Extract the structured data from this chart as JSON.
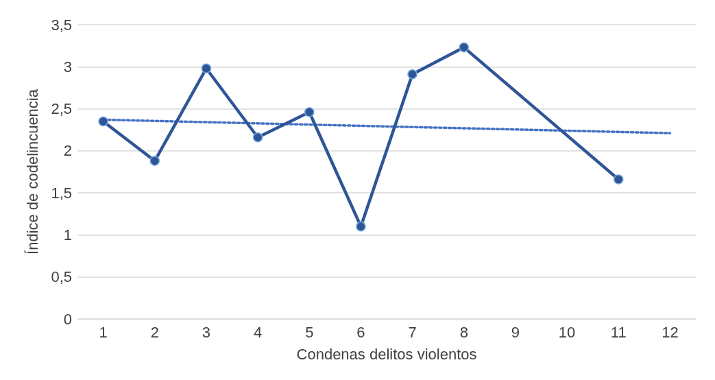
{
  "chart_data": {
    "type": "line",
    "xlabel": "Condenas delitos violentos",
    "ylabel": "Índice de codelincuencia",
    "xlim": [
      0.5,
      12.5
    ],
    "xticks": [
      1,
      2,
      3,
      4,
      5,
      6,
      7,
      8,
      9,
      10,
      11,
      12
    ],
    "ylim": [
      0,
      3.5
    ],
    "yticks": [
      0,
      {
        "value": 0.5,
        "label": "0,5"
      },
      1,
      {
        "value": 1.5,
        "label": "1,5"
      },
      2,
      {
        "value": 2.5,
        "label": "2,5"
      },
      3,
      {
        "value": 3.5,
        "label": "3,5"
      }
    ],
    "grid": "y",
    "series": [
      {
        "color": "#2f5597",
        "marker": "circle",
        "line_style": "solid",
        "x": [
          1,
          2,
          3,
          4,
          5,
          6,
          7,
          8,
          11
        ],
        "values": [
          2.35,
          1.88,
          2.98,
          2.16,
          2.46,
          1.1,
          2.91,
          3.23,
          1.66
        ]
      },
      {
        "color": "#4472c4",
        "marker": "none",
        "line_style": "dotted",
        "x": [
          1,
          12
        ],
        "values": [
          2.37,
          2.21
        ]
      }
    ]
  }
}
